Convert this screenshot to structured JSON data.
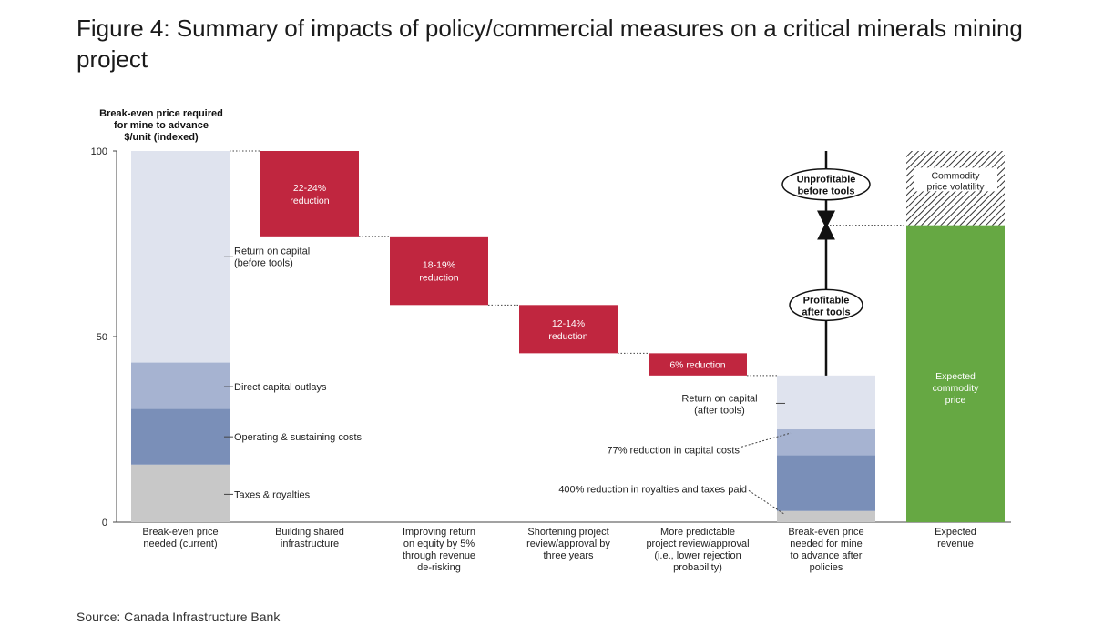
{
  "title": "Figure 4: Summary of impacts of policy/commercial measures on a critical minerals mining project",
  "source": "Source: Canada Infrastructure Bank",
  "chart_data": {
    "type": "bar",
    "subtype": "waterfall",
    "ylabel": [
      "Break-even price required",
      "for mine to advance",
      "$/unit (indexed)"
    ],
    "ylim": [
      0,
      100
    ],
    "yticks": [
      0,
      50,
      100
    ],
    "grid": false,
    "categories": [
      {
        "label": [
          "Break-even price",
          "needed (current)"
        ]
      },
      {
        "label": [
          "Building shared",
          "infrastructure"
        ]
      },
      {
        "label": [
          "Improving return",
          "on equity by 5%",
          "through revenue",
          "de-risking"
        ]
      },
      {
        "label": [
          "Shortening project",
          "review/approval by",
          "three years"
        ]
      },
      {
        "label": [
          "More predictable",
          "project review/approval",
          "(i.e., lower rejection",
          "probability)"
        ]
      },
      {
        "label": [
          "Break-even price",
          "needed for mine",
          "to advance after",
          "policies"
        ]
      },
      {
        "label": [
          "Expected",
          "revenue"
        ]
      }
    ],
    "stacks": [
      {
        "category": 0,
        "segments": [
          {
            "name": "Taxes & royalties",
            "value": 15.5,
            "color": "#c8c8c8"
          },
          {
            "name": "Operating & sustaining costs",
            "value": 15,
            "color": "#7a8fb8"
          },
          {
            "name": "Direct capital outlays",
            "value": 12.5,
            "color": "#a6b3d1"
          },
          {
            "name": "Return on capital (before tools)",
            "value": 57,
            "color": "#dfe3ee"
          }
        ]
      },
      {
        "category": 5,
        "segments": [
          {
            "value": 3,
            "color": "#c8c8c8"
          },
          {
            "value": 15,
            "color": "#7a8fb8"
          },
          {
            "value": 7,
            "color": "#a6b3d1"
          },
          {
            "value": 14.5,
            "color": "#dfe3ee"
          }
        ]
      }
    ],
    "steps": [
      {
        "category": 1,
        "from": 100,
        "to": 77,
        "label": [
          "22-24%",
          "reduction"
        ],
        "color": "#c0263f"
      },
      {
        "category": 2,
        "from": 77,
        "to": 58.5,
        "label": [
          "18-19%",
          "reduction"
        ],
        "color": "#c0263f"
      },
      {
        "category": 3,
        "from": 58.5,
        "to": 45.5,
        "label": [
          "12-14%",
          "reduction"
        ],
        "color": "#c0263f"
      },
      {
        "category": 4,
        "from": 45.5,
        "to": 39.5,
        "label": [
          "6% reduction"
        ],
        "color": "#c0263f"
      }
    ],
    "revenue": {
      "category": 6,
      "value": 80,
      "label": [
        "Expected",
        "commodity",
        "price"
      ],
      "color": "#66a843"
    },
    "volatility": {
      "category": 6,
      "from": 80,
      "to": 100,
      "label": [
        "Commodity",
        "price volatility"
      ]
    },
    "segment_labels": [
      {
        "text": [
          "Return on capital",
          "(before tools)"
        ],
        "y": 71.5,
        "category": 0
      },
      {
        "text": [
          "Direct capital outlays"
        ],
        "y": 36.5,
        "category": 0
      },
      {
        "text": [
          "Operating & sustaining costs"
        ],
        "y": 23,
        "category": 0
      },
      {
        "text": [
          "Taxes & royalties"
        ],
        "y": 7.5,
        "category": 0
      }
    ],
    "after_labels": [
      {
        "text": [
          "Return on capital",
          "(after tools)"
        ],
        "y": 32
      },
      {
        "text": [
          "77% reduction in capital costs"
        ],
        "y": 21.5
      },
      {
        "text": [
          "400% reduction in royalties and taxes paid"
        ],
        "y": 9
      }
    ],
    "annotations": {
      "unprofitable": [
        "Unprofitable",
        "before tools"
      ],
      "profitable": [
        "Profitable",
        "after tools"
      ]
    }
  }
}
